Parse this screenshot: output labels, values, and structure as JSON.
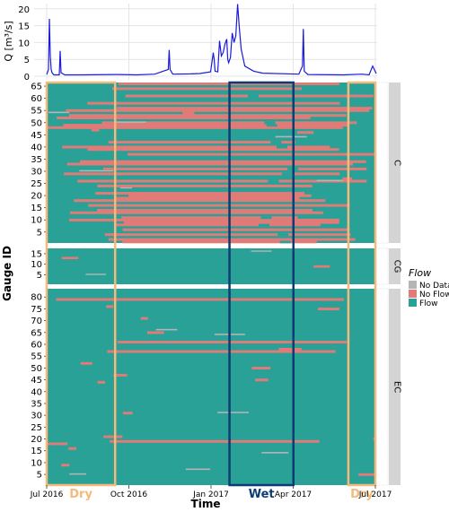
{
  "colors": {
    "flow": "#2aa197",
    "no_flow": "#e07b78",
    "no_data": "#b5b5b5",
    "hydrograph": "#1a1ad8",
    "dry_box": "#f5b97a",
    "wet_box": "#0d3b73",
    "strip": "#d4d4d4",
    "grid": "#e5e5e5"
  },
  "chart_data": [
    {
      "type": "line",
      "ylabel": "Q [m³/s]",
      "ylim": [
        0,
        21
      ],
      "yticks": [
        0,
        5,
        10,
        15,
        20
      ],
      "grid": true,
      "series": [
        {
          "x_days": [
            0,
            2,
            3,
            4,
            5,
            6,
            8,
            14,
            15,
            16,
            20,
            40,
            80,
            100,
            120,
            135,
            136,
            137,
            140,
            160,
            170,
            182,
            185,
            186,
            187,
            190,
            192,
            194,
            196,
            198,
            200,
            201,
            202,
            204,
            206,
            208,
            210,
            212,
            214,
            216,
            220,
            230,
            240,
            280,
            284,
            285,
            286,
            290,
            330,
            350,
            358,
            362,
            366
          ],
          "values": [
            0.5,
            2,
            17,
            6,
            2,
            1,
            0.4,
            0.4,
            7.5,
            1,
            0.4,
            0.4,
            0.5,
            0.4,
            0.6,
            2,
            7.8,
            2,
            0.6,
            0.7,
            0.8,
            1.3,
            7,
            5,
            1.5,
            1.3,
            10.5,
            6,
            7,
            9.5,
            11,
            5,
            4,
            5.5,
            12.8,
            10,
            12,
            21.4,
            14,
            8,
            3,
            1.5,
            0.9,
            0.6,
            3,
            14,
            1.5,
            0.5,
            0.4,
            0.6,
            0.4,
            3,
            0.8
          ]
        }
      ]
    },
    {
      "type": "heatmap",
      "ylabel": "Gauge ID",
      "xlabel": "Time",
      "x_ticks": [
        "Jul 2016",
        "Oct 2016",
        "Jan 2017",
        "Apr 2017",
        "Jul 2017"
      ],
      "legend": {
        "title": "Flow",
        "items": [
          "No Data",
          "No Flow",
          "Flow"
        ]
      },
      "panels": [
        {
          "name": "C",
          "gauges": 66,
          "yticks": [
            5,
            10,
            15,
            20,
            25,
            30,
            35,
            40,
            45,
            50,
            55,
            60,
            65
          ],
          "no_flow_share": 0.55
        },
        {
          "name": "CG",
          "gauges": 17,
          "yticks": [
            5,
            10,
            15
          ],
          "no_flow_share": 0.02
        },
        {
          "name": "EC",
          "gauges": 83,
          "yticks": [
            5,
            10,
            15,
            20,
            25,
            30,
            35,
            40,
            45,
            50,
            55,
            60,
            65,
            70,
            75,
            80
          ],
          "no_flow_share": 0.08
        }
      ],
      "periods": [
        {
          "label": "Dry",
          "start": "2016-07-01",
          "end": "2016-09-15"
        },
        {
          "label": "Wet",
          "start": "2017-01-20",
          "end": "2017-04-01"
        },
        {
          "label": "Dry",
          "start": "2017-06-01",
          "end": "2017-07-01"
        }
      ]
    }
  ]
}
